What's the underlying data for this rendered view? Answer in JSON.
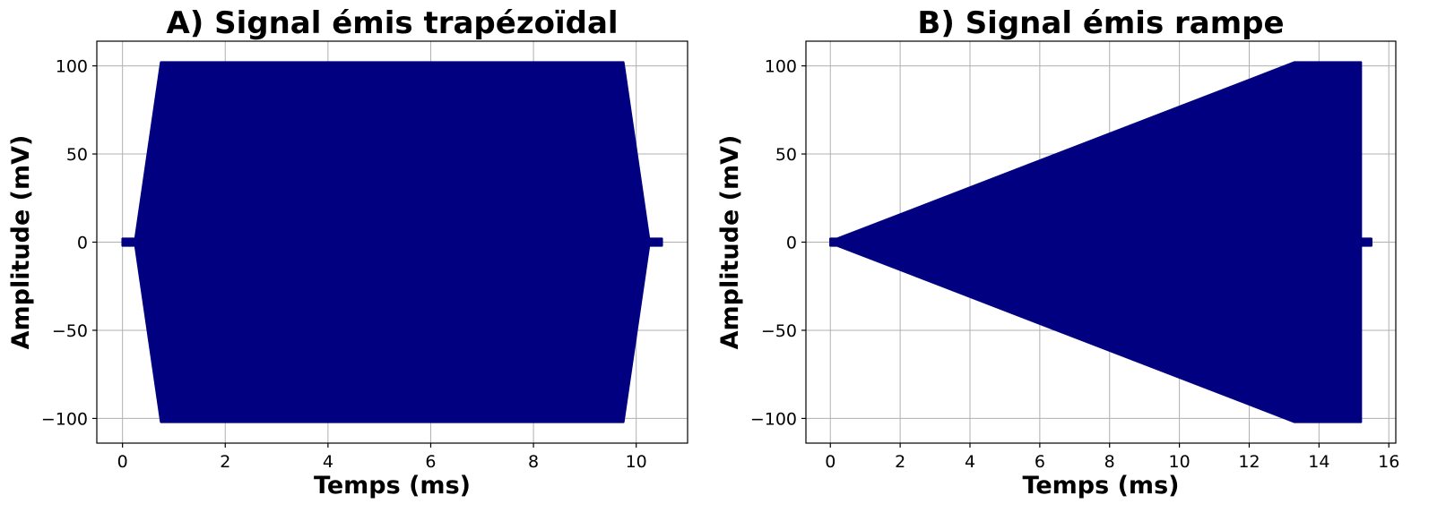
{
  "chart_data": [
    {
      "type": "area",
      "title": "A) Signal émis trapézoïdal",
      "xlabel": "Temps (ms)",
      "ylabel": "Amplitude (mV)",
      "xlim": [
        -0.5,
        11.0
      ],
      "ylim": [
        -114,
        114
      ],
      "xticks": [
        0,
        2,
        4,
        6,
        8,
        10
      ],
      "yticks": [
        -100,
        -50,
        0,
        50,
        100
      ],
      "ytick_labels": [
        "−100",
        "−50",
        "0",
        "50",
        "100"
      ],
      "grid": true,
      "color": "#000080",
      "envelope": {
        "x": [
          0.0,
          0.25,
          0.75,
          9.75,
          10.25,
          10.5
        ],
        "upper": [
          2,
          2,
          102,
          102,
          2,
          2
        ],
        "lower": [
          -2,
          -2,
          -102,
          -102,
          -2,
          -2
        ]
      }
    },
    {
      "type": "area",
      "title": "B) Signal émis rampe",
      "xlabel": "Temps (ms)",
      "ylabel": "Amplitude (mV)",
      "xlim": [
        -0.7,
        16.2
      ],
      "ylim": [
        -114,
        114
      ],
      "xticks": [
        0,
        2,
        4,
        6,
        8,
        10,
        12,
        14,
        16
      ],
      "yticks": [
        -100,
        -50,
        0,
        50,
        100
      ],
      "ytick_labels": [
        "−100",
        "−50",
        "0",
        "50",
        "100"
      ],
      "grid": true,
      "color": "#000080",
      "envelope": {
        "x": [
          0.0,
          0.2,
          13.3,
          15.2,
          15.2,
          15.5
        ],
        "upper": [
          2,
          2,
          102,
          102,
          2,
          2
        ],
        "lower": [
          -2,
          -2,
          -102,
          -102,
          -2,
          -2
        ]
      }
    }
  ]
}
